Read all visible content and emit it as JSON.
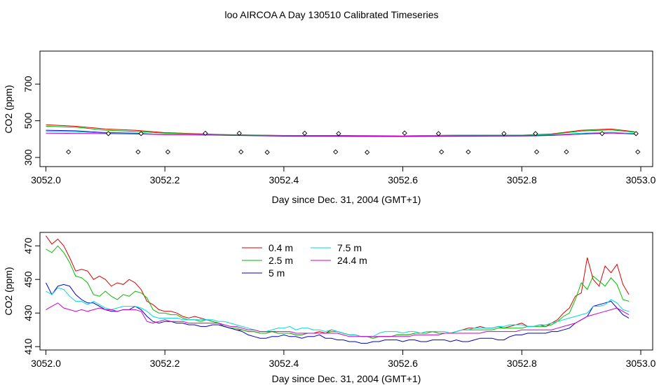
{
  "title": "loo AIRCOA A  Day 130510  Calibrated Timeseries",
  "colors": {
    "0.4 m": "#dd0000",
    "2.5 m": "#00bb00",
    "5 m": "#0000cc",
    "7.5 m": "#00d8d8",
    "24.4 m": "#cc00cc",
    "markers": "#000000"
  },
  "chart_data": [
    {
      "type": "line",
      "panel": "top",
      "xlabel": "Day since Dec. 31, 2004 (GMT+1)",
      "ylabel": "CO2 (ppm)",
      "xlim": [
        3051.99,
        3053.02
      ],
      "ylim": [
        250,
        880
      ],
      "xticks": [
        3052.0,
        3052.2,
        3052.4,
        3052.6,
        3052.8,
        3053.0
      ],
      "xtick_labels": [
        "3052.0",
        "3052.2",
        "3052.4",
        "3052.6",
        "3052.8",
        "3053.0"
      ],
      "yticks": [
        300,
        500,
        700
      ],
      "ytick_labels": [
        "300",
        "500",
        "700"
      ],
      "legend": "none",
      "grid": false,
      "series_lines": [
        {
          "name": "0.4 m",
          "x": [
            3052.0,
            3052.05,
            3052.1,
            3052.15,
            3052.2,
            3052.3,
            3052.4,
            3052.5,
            3052.6,
            3052.7,
            3052.8,
            3052.85,
            3052.9,
            3052.95,
            3052.99
          ],
          "y": [
            478,
            470,
            455,
            448,
            435,
            425,
            420,
            420,
            418,
            422,
            422,
            428,
            448,
            455,
            440
          ]
        },
        {
          "name": "2.5 m",
          "x": [
            3052.0,
            3052.05,
            3052.1,
            3052.15,
            3052.2,
            3052.3,
            3052.4,
            3052.5,
            3052.6,
            3052.7,
            3052.8,
            3052.85,
            3052.9,
            3052.95,
            3052.99
          ],
          "y": [
            470,
            465,
            448,
            442,
            432,
            424,
            419,
            419,
            418,
            421,
            421,
            426,
            444,
            450,
            438
          ]
        },
        {
          "name": "5 m",
          "x": [
            3052.0,
            3052.05,
            3052.1,
            3052.15,
            3052.2,
            3052.3,
            3052.4,
            3052.5,
            3052.6,
            3052.7,
            3052.8,
            3052.85,
            3052.9,
            3052.95,
            3052.99
          ],
          "y": [
            448,
            445,
            435,
            432,
            425,
            421,
            416,
            415,
            414,
            416,
            417,
            420,
            428,
            436,
            428
          ]
        },
        {
          "name": "7.5 m",
          "x": [
            3052.0,
            3052.05,
            3052.1,
            3052.15,
            3052.2,
            3052.3,
            3052.4,
            3052.5,
            3052.6,
            3052.7,
            3052.8,
            3052.85,
            3052.9,
            3052.95,
            3052.99
          ],
          "y": [
            442,
            440,
            432,
            430,
            426,
            422,
            420,
            418,
            418,
            421,
            421,
            423,
            432,
            437,
            431
          ]
        },
        {
          "name": "24.4 m",
          "x": [
            3052.0,
            3052.05,
            3052.1,
            3052.15,
            3052.2,
            3052.3,
            3052.4,
            3052.5,
            3052.6,
            3052.7,
            3052.8,
            3052.85,
            3052.9,
            3052.95,
            3052.99
          ],
          "y": [
            432,
            431,
            430,
            428,
            424,
            422,
            418,
            417,
            416,
            418,
            419,
            421,
            427,
            433,
            427
          ]
        }
      ],
      "markers": {
        "x": [
          3052.038,
          3052.105,
          3052.155,
          3052.16,
          3052.205,
          3052.268,
          3052.325,
          3052.328,
          3052.372,
          3052.435,
          3052.487,
          3052.492,
          3052.54,
          3052.603,
          3052.66,
          3052.665,
          3052.71,
          3052.77,
          3052.823,
          3052.825,
          3052.875,
          3052.935,
          3052.992,
          3052.995
        ],
        "y": [
          330,
          430,
          330,
          430,
          330,
          432,
          432,
          330,
          328,
          432,
          330,
          430,
          328,
          433,
          430,
          330,
          330,
          430,
          430,
          330,
          330,
          430,
          430,
          330
        ]
      }
    },
    {
      "type": "line",
      "panel": "bottom",
      "xlabel": "Day since Dec. 31, 2004 (GMT+1)",
      "ylabel": "CO2 (ppm)",
      "xlim": [
        3051.99,
        3053.02
      ],
      "ylim": [
        408,
        478
      ],
      "xticks": [
        3052.0,
        3052.2,
        3052.4,
        3052.6,
        3052.8,
        3053.0
      ],
      "xtick_labels": [
        "3052.0",
        "3052.2",
        "3052.4",
        "3052.6",
        "3052.8",
        "3053.0"
      ],
      "yticks": [
        410,
        430,
        450,
        470
      ],
      "ytick_labels": [
        "410",
        "430",
        "450",
        "470"
      ],
      "legend": "top-center",
      "grid": false,
      "x": [
        3052.0,
        3052.01,
        3052.02,
        3052.03,
        3052.04,
        3052.05,
        3052.06,
        3052.07,
        3052.08,
        3052.09,
        3052.1,
        3052.11,
        3052.12,
        3052.13,
        3052.14,
        3052.15,
        3052.16,
        3052.17,
        3052.18,
        3052.19,
        3052.2,
        3052.21,
        3052.22,
        3052.23,
        3052.24,
        3052.25,
        3052.26,
        3052.27,
        3052.28,
        3052.29,
        3052.3,
        3052.31,
        3052.32,
        3052.33,
        3052.34,
        3052.35,
        3052.36,
        3052.37,
        3052.38,
        3052.39,
        3052.4,
        3052.41,
        3052.42,
        3052.43,
        3052.44,
        3052.45,
        3052.46,
        3052.47,
        3052.48,
        3052.49,
        3052.5,
        3052.51,
        3052.52,
        3052.53,
        3052.54,
        3052.55,
        3052.56,
        3052.57,
        3052.58,
        3052.59,
        3052.6,
        3052.61,
        3052.62,
        3052.63,
        3052.64,
        3052.65,
        3052.66,
        3052.67,
        3052.68,
        3052.69,
        3052.7,
        3052.71,
        3052.72,
        3052.73,
        3052.74,
        3052.75,
        3052.76,
        3052.77,
        3052.78,
        3052.79,
        3052.8,
        3052.81,
        3052.82,
        3052.83,
        3052.84,
        3052.85,
        3052.86,
        3052.87,
        3052.88,
        3052.89,
        3052.9,
        3052.91,
        3052.92,
        3052.93,
        3052.94,
        3052.95,
        3052.96,
        3052.97,
        3052.98
      ],
      "series": [
        {
          "name": "0.4 m",
          "values": [
            476,
            471,
            474,
            470,
            463,
            455,
            456,
            455,
            450,
            452,
            450,
            446,
            448,
            447,
            450,
            448,
            444,
            437,
            435,
            432,
            431,
            431,
            430,
            428,
            427,
            428,
            427,
            426,
            425,
            424,
            422,
            421,
            420,
            420,
            419,
            419,
            418,
            418,
            419,
            418,
            418,
            418,
            417,
            417,
            418,
            418,
            419,
            418,
            420,
            419,
            418,
            417,
            417,
            416,
            416,
            415,
            416,
            416,
            416,
            417,
            417,
            417,
            418,
            418,
            418,
            419,
            418,
            418,
            418,
            419,
            420,
            421,
            421,
            422,
            421,
            421,
            422,
            421,
            422,
            423,
            424,
            422,
            422,
            423,
            422,
            424,
            426,
            430,
            433,
            440,
            442,
            463,
            450,
            446,
            458,
            454,
            459,
            447,
            441
          ]
        },
        {
          "name": "2.5 m",
          "values": [
            468,
            466,
            470,
            466,
            460,
            452,
            451,
            448,
            441,
            440,
            443,
            440,
            438,
            441,
            440,
            443,
            442,
            439,
            432,
            430,
            430,
            429,
            429,
            427,
            426,
            426,
            425,
            426,
            425,
            424,
            422,
            421,
            421,
            420,
            419,
            419,
            418,
            418,
            419,
            418,
            418,
            418,
            417,
            417,
            418,
            418,
            418,
            418,
            419,
            419,
            418,
            417,
            417,
            416,
            416,
            415,
            416,
            416,
            416,
            417,
            417,
            417,
            418,
            418,
            418,
            419,
            418,
            418,
            418,
            419,
            420,
            420,
            420,
            420,
            420,
            420,
            421,
            421,
            421,
            421,
            421,
            422,
            422,
            422,
            422,
            423,
            425,
            428,
            430,
            438,
            448,
            444,
            452,
            449,
            446,
            451,
            447,
            438,
            437
          ]
        },
        {
          "name": "5 m",
          "values": [
            448,
            441,
            446,
            447,
            446,
            441,
            438,
            436,
            436,
            434,
            432,
            431,
            431,
            432,
            432,
            434,
            432,
            428,
            425,
            424,
            425,
            425,
            424,
            424,
            423,
            423,
            422,
            422,
            423,
            423,
            422,
            421,
            420,
            419,
            417,
            416,
            415,
            415,
            416,
            416,
            417,
            416,
            416,
            415,
            416,
            416,
            417,
            415,
            415,
            414,
            414,
            413,
            413,
            412,
            412,
            413,
            413,
            414,
            414,
            414,
            413,
            414,
            414,
            413,
            413,
            414,
            414,
            414,
            413,
            414,
            413,
            413,
            414,
            415,
            415,
            415,
            414,
            414,
            416,
            417,
            417,
            418,
            418,
            418,
            418,
            419,
            419,
            420,
            421,
            424,
            426,
            428,
            434,
            435,
            436,
            437,
            433,
            429,
            427
          ]
        },
        {
          "name": "7.5 m",
          "values": [
            443,
            441,
            445,
            444,
            440,
            437,
            437,
            435,
            437,
            435,
            433,
            432,
            433,
            434,
            434,
            434,
            433,
            431,
            428,
            427,
            427,
            427,
            427,
            426,
            426,
            426,
            426,
            426,
            426,
            425,
            425,
            424,
            423,
            422,
            421,
            420,
            419,
            419,
            420,
            421,
            421,
            422,
            420,
            421,
            421,
            420,
            420,
            419,
            420,
            419,
            418,
            417,
            417,
            416,
            416,
            416,
            418,
            419,
            419,
            419,
            418,
            419,
            419,
            418,
            419,
            419,
            419,
            419,
            418,
            419,
            420,
            420,
            421,
            421,
            421,
            421,
            422,
            422,
            423,
            423,
            423,
            422,
            422,
            423,
            423,
            424,
            425,
            426,
            427,
            428,
            429,
            430,
            434,
            434,
            435,
            438,
            436,
            432,
            431
          ]
        },
        {
          "name": "24.4 m",
          "values": [
            432,
            434,
            436,
            433,
            432,
            431,
            432,
            431,
            432,
            433,
            432,
            432,
            431,
            432,
            432,
            432,
            431,
            425,
            424,
            425,
            426,
            425,
            425,
            425,
            424,
            424,
            424,
            424,
            424,
            424,
            423,
            422,
            422,
            421,
            420,
            420,
            419,
            419,
            419,
            419,
            419,
            419,
            418,
            418,
            418,
            418,
            418,
            418,
            418,
            418,
            417,
            416,
            416,
            416,
            416,
            416,
            416,
            416,
            416,
            416,
            416,
            416,
            417,
            417,
            417,
            417,
            417,
            418,
            418,
            418,
            418,
            418,
            418,
            418,
            419,
            419,
            419,
            419,
            419,
            419,
            420,
            420,
            420,
            420,
            420,
            420,
            421,
            422,
            423,
            424,
            426,
            428,
            429,
            430,
            431,
            432,
            433,
            431,
            429
          ]
        }
      ]
    }
  ]
}
